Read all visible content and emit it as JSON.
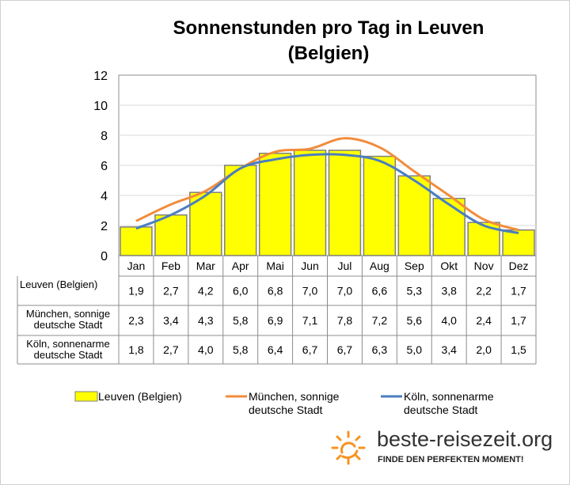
{
  "chart_data": {
    "type": "bar",
    "title": "Sonnenstunden pro Tag in Leuven (Belgien)",
    "categories": [
      "Jan",
      "Feb",
      "Mar",
      "Apr",
      "Mai",
      "Jun",
      "Jul",
      "Aug",
      "Sep",
      "Okt",
      "Nov",
      "Dez"
    ],
    "ylim": [
      0,
      12
    ],
    "yticks": [
      0,
      2,
      4,
      6,
      8,
      10,
      12
    ],
    "grid": true,
    "legend_position": "bottom",
    "series": [
      {
        "name": "Leuven (Belgien)",
        "table_label": [
          "Leuven (Belgien)"
        ],
        "type": "bar",
        "color": "#ffff00",
        "values": [
          1.9,
          2.7,
          4.2,
          6.0,
          6.8,
          7.0,
          7.0,
          6.6,
          5.3,
          3.8,
          2.2,
          1.7
        ],
        "labels": [
          "1,9",
          "2,7",
          "4,2",
          "6,0",
          "6,8",
          "7,0",
          "7,0",
          "6,6",
          "5,3",
          "3,8",
          "2,2",
          "1,7"
        ]
      },
      {
        "name": "München, sonnige deutsche Stadt",
        "table_label": [
          "München, sonnige",
          "deutsche Stadt"
        ],
        "legend_lines": [
          "München, sonnige",
          "deutsche Stadt"
        ],
        "type": "line",
        "color": "#f28c3c",
        "values": [
          2.3,
          3.4,
          4.3,
          5.8,
          6.9,
          7.1,
          7.8,
          7.2,
          5.6,
          4.0,
          2.4,
          1.7
        ],
        "labels": [
          "2,3",
          "3,4",
          "4,3",
          "5,8",
          "6,9",
          "7,1",
          "7,8",
          "7,2",
          "5,6",
          "4,0",
          "2,4",
          "1,7"
        ]
      },
      {
        "name": "Köln, sonnenarme deutsche Stadt",
        "table_label": [
          "Köln, sonnenarme",
          "deutsche Stadt"
        ],
        "legend_lines": [
          "Köln, sonnenarme",
          "deutsche Stadt"
        ],
        "type": "line",
        "color": "#4a7ebf",
        "values": [
          1.8,
          2.7,
          4.0,
          5.8,
          6.4,
          6.7,
          6.7,
          6.3,
          5.0,
          3.4,
          2.0,
          1.5
        ],
        "labels": [
          "1,8",
          "2,7",
          "4,0",
          "5,8",
          "6,4",
          "6,7",
          "6,7",
          "6,3",
          "5,0",
          "3,4",
          "2,0",
          "1,5"
        ]
      }
    ]
  },
  "title_lines": [
    "Sonnenstunden pro Tag in Leuven",
    "(Belgien)"
  ],
  "brand": {
    "name": "beste-reisezeit.org",
    "tagline": "FINDE DEN PERFEKTEN MOMENT!"
  },
  "colors": {
    "bar_border": "#7f7f7f",
    "grid": "#d9d9d9",
    "sun": "#f7931e"
  }
}
